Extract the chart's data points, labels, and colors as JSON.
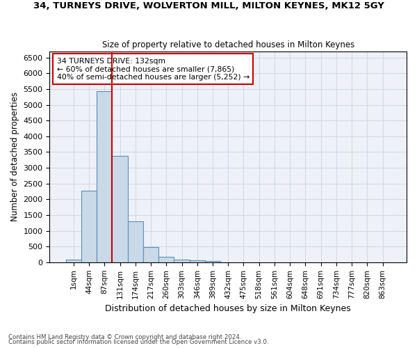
{
  "title": "34, TURNEYS DRIVE, WOLVERTON MILL, MILTON KEYNES, MK12 5GY",
  "subtitle": "Size of property relative to detached houses in Milton Keynes",
  "xlabel": "Distribution of detached houses by size in Milton Keynes",
  "ylabel": "Number of detached properties",
  "footnote1": "Contains HM Land Registry data © Crown copyright and database right 2024.",
  "footnote2": "Contains public sector information licensed under the Open Government Licence v3.0.",
  "bins": [
    "1sqm",
    "44sqm",
    "87sqm",
    "131sqm",
    "174sqm",
    "217sqm",
    "260sqm",
    "303sqm",
    "346sqm",
    "389sqm",
    "432sqm",
    "475sqm",
    "518sqm",
    "561sqm",
    "604sqm",
    "648sqm",
    "691sqm",
    "734sqm",
    "777sqm",
    "820sqm",
    "863sqm"
  ],
  "values": [
    75,
    2270,
    5430,
    3380,
    1310,
    480,
    165,
    80,
    55,
    40,
    0,
    0,
    0,
    0,
    0,
    0,
    0,
    0,
    0,
    0,
    0
  ],
  "bar_color": "#c9d9e8",
  "bar_edge_color": "#5b8db8",
  "grid_color": "#d0d8e8",
  "background_color": "#eef2f8",
  "vline_color": "#cc0000",
  "annotation_text": "34 TURNEYS DRIVE: 132sqm\n← 60% of detached houses are smaller (7,865)\n40% of semi-detached houses are larger (5,252) →",
  "annotation_box_color": "#ffffff",
  "annotation_box_edge": "#cc0000",
  "ylim": [
    0,
    6700
  ],
  "yticks": [
    0,
    500,
    1000,
    1500,
    2000,
    2500,
    3000,
    3500,
    4000,
    4500,
    5000,
    5500,
    6000,
    6500
  ]
}
